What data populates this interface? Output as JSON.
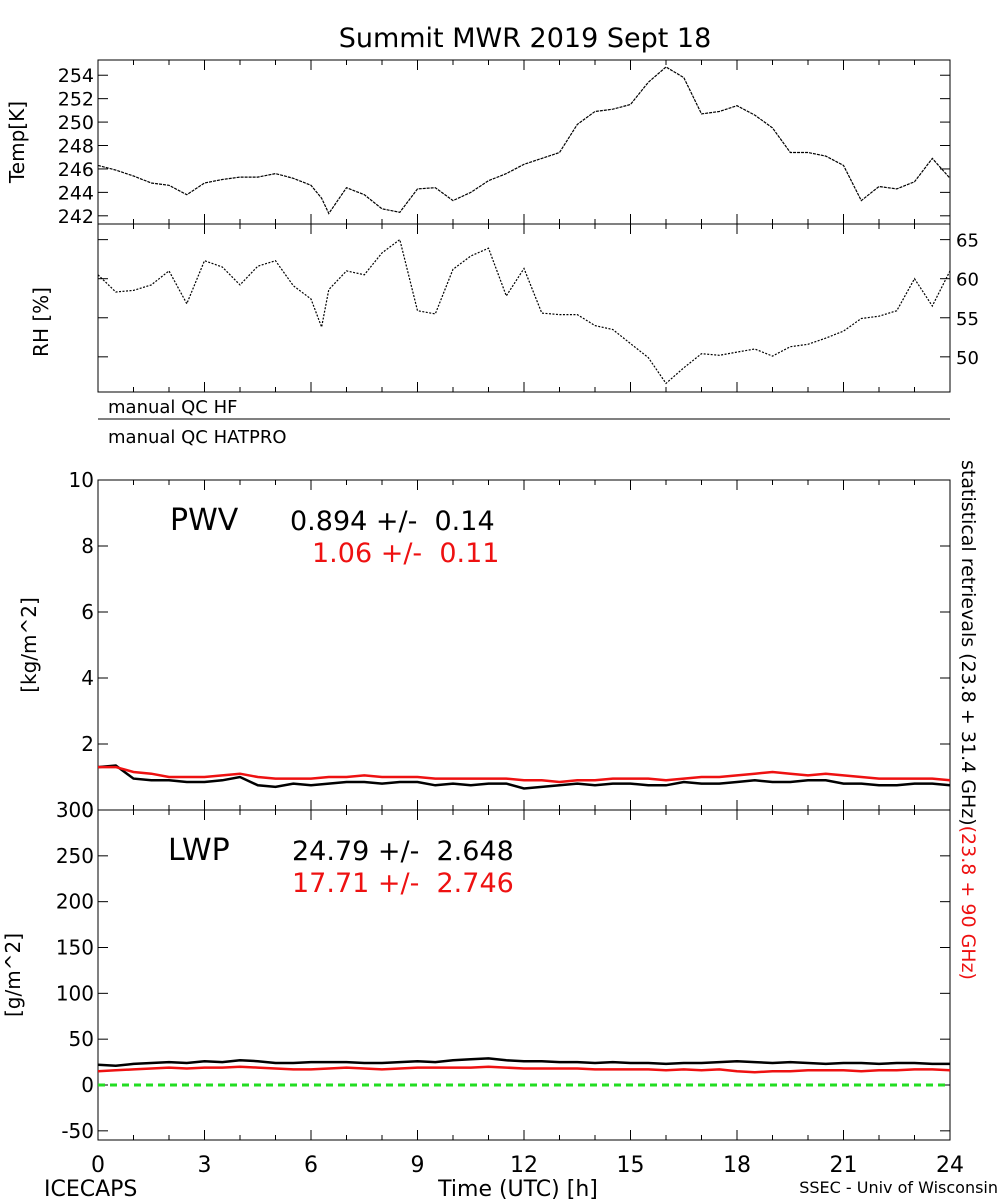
{
  "title": "Summit MWR 2019 Sept 18",
  "footer": {
    "left": "ICECAPS",
    "right": "SSEC - Univ of Wisconsin"
  },
  "xaxis": {
    "label": "Time (UTC) [h]",
    "range": [
      0,
      24
    ],
    "ticks": [
      "0",
      "3",
      "6",
      "9",
      "12",
      "15",
      "18",
      "21",
      "24"
    ]
  },
  "colors": {
    "black": "#000000",
    "red": "#ee1111",
    "green": "#22dd22"
  },
  "qc": {
    "hf_label": "manual QC HF",
    "hatpro_label": "manual QC HATPRO"
  },
  "right_label": {
    "black_part": "statistical retrievals (23.8 + 31.4 GHz)",
    "red_part": "(23.8 + 90 GHz)"
  },
  "pwv": {
    "name": "PWV",
    "black_stat": "0.894 +/-  0.14",
    "red_stat": "1.06 +/-  0.11",
    "ylabel": "[kg/m^2]",
    "ticks": [
      "0",
      "2",
      "4",
      "6",
      "8",
      "10"
    ]
  },
  "lwp": {
    "name": "LWP",
    "black_stat": "24.79 +/-  2.648",
    "red_stat": "17.71 +/-  2.746",
    "ylabel": "[g/m^2]",
    "ticks": [
      "-50",
      "0",
      "50",
      "100",
      "150",
      "200",
      "250",
      "300"
    ]
  },
  "temp": {
    "ylabel": "Temp[K]",
    "ticks": [
      "242",
      "244",
      "246",
      "248",
      "250",
      "252",
      "254"
    ]
  },
  "rh": {
    "ylabel": "RH [%]",
    "ticks": [
      "50",
      "55",
      "60",
      "65"
    ]
  },
  "chart_data": [
    {
      "type": "line",
      "ylabel": "Temp[K]",
      "ylim": [
        241.3,
        255.3
      ],
      "x": [
        0,
        0.5,
        1,
        1.5,
        2,
        2.5,
        3,
        3.5,
        4,
        4.5,
        5,
        5.5,
        6,
        6.3,
        6.5,
        7,
        7.5,
        8,
        8.5,
        9,
        9.5,
        10,
        10.5,
        11,
        11.5,
        12,
        12.5,
        13,
        13.5,
        14,
        14.5,
        15,
        15.5,
        16,
        16.5,
        17,
        17.5,
        18,
        18.5,
        19,
        19.5,
        20,
        20.5,
        21,
        21.5,
        22,
        22.5,
        23,
        23.5,
        24
      ],
      "series": [
        {
          "values": [
            246.3,
            245.9,
            245.4,
            244.8,
            244.6,
            243.8,
            244.8,
            245.1,
            245.3,
            245.3,
            245.6,
            245.2,
            244.6,
            243.5,
            242.2,
            244.4,
            243.8,
            242.6,
            242.3,
            244.3,
            244.4,
            243.3,
            244.0,
            245.0,
            245.6,
            246.4,
            246.9,
            247.4,
            249.8,
            250.9,
            251.1,
            251.5,
            253.4,
            254.7,
            253.8,
            250.7,
            250.9,
            251.4,
            250.6,
            249.5,
            247.4,
            247.4,
            247.1,
            246.3,
            243.3,
            244.5,
            244.3,
            244.9,
            246.9,
            245.2
          ]
        }
      ]
    },
    {
      "type": "line",
      "ylabel": "RH [%]",
      "ylim": [
        45.5,
        67
      ],
      "x": [
        0,
        0.5,
        1,
        1.5,
        2,
        2.5,
        3,
        3.5,
        4,
        4.5,
        5,
        5.5,
        6,
        6.3,
        6.5,
        7,
        7.5,
        8,
        8.5,
        9,
        9.5,
        10,
        10.5,
        11,
        11.5,
        12,
        12.5,
        13,
        13.5,
        14,
        14.5,
        15,
        15.5,
        16,
        16.5,
        17,
        17.5,
        18,
        18.5,
        19,
        19.5,
        20,
        20.5,
        21,
        21.5,
        22,
        22.5,
        23,
        23.5,
        24
      ],
      "series": [
        {
          "values": [
            60.5,
            58.3,
            58.5,
            59.2,
            61.0,
            56.8,
            62.3,
            61.5,
            59.2,
            61.6,
            62.3,
            59.1,
            57.4,
            53.8,
            58.6,
            61.0,
            60.5,
            63.3,
            65.0,
            55.9,
            55.5,
            61.2,
            62.9,
            63.9,
            57.8,
            61.3,
            55.6,
            55.4,
            55.4,
            54.0,
            53.5,
            51.7,
            49.9,
            46.6,
            48.6,
            50.4,
            50.2,
            50.6,
            51.0,
            50.1,
            51.3,
            51.6,
            52.4,
            53.3,
            54.9,
            55.2,
            55.9,
            60.0,
            56.5,
            61.0
          ]
        }
      ]
    },
    {
      "type": "line",
      "ylabel": "[kg/m^2]",
      "ylim": [
        0,
        10
      ],
      "x": [
        0,
        0.5,
        1,
        1.5,
        2,
        2.5,
        3,
        3.5,
        4,
        4.5,
        5,
        5.5,
        6,
        6.5,
        7,
        7.5,
        8,
        8.5,
        9,
        9.5,
        10,
        10.5,
        11,
        11.5,
        12,
        12.5,
        13,
        13.5,
        14,
        14.5,
        15,
        15.5,
        16,
        16.5,
        17,
        17.5,
        18,
        18.5,
        19,
        19.5,
        20,
        20.5,
        21,
        21.5,
        22,
        22.5,
        23,
        23.5,
        24
      ],
      "series": [
        {
          "name": "0.894 +/-  0.14",
          "values": [
            1.3,
            1.35,
            0.95,
            0.9,
            0.9,
            0.85,
            0.85,
            0.9,
            1.0,
            0.75,
            0.7,
            0.8,
            0.75,
            0.8,
            0.85,
            0.85,
            0.8,
            0.85,
            0.85,
            0.75,
            0.8,
            0.75,
            0.8,
            0.8,
            0.65,
            0.7,
            0.75,
            0.8,
            0.75,
            0.8,
            0.8,
            0.75,
            0.75,
            0.85,
            0.8,
            0.8,
            0.85,
            0.9,
            0.85,
            0.85,
            0.9,
            0.9,
            0.8,
            0.8,
            0.75,
            0.75,
            0.8,
            0.8,
            0.75
          ]
        },
        {
          "name": "1.06 +/-  0.11",
          "values": [
            1.3,
            1.3,
            1.15,
            1.1,
            1.0,
            1.0,
            1.0,
            1.05,
            1.1,
            1.0,
            0.95,
            0.95,
            0.95,
            1.0,
            1.0,
            1.05,
            1.0,
            1.0,
            1.0,
            0.95,
            0.95,
            0.95,
            0.95,
            0.95,
            0.9,
            0.9,
            0.85,
            0.9,
            0.9,
            0.95,
            0.95,
            0.95,
            0.9,
            0.95,
            1.0,
            1.0,
            1.05,
            1.1,
            1.15,
            1.1,
            1.05,
            1.1,
            1.05,
            1.0,
            0.95,
            0.95,
            0.95,
            0.95,
            0.9
          ]
        }
      ]
    },
    {
      "type": "line",
      "ylabel": "[g/m^2]",
      "ylim": [
        -60,
        300
      ],
      "x": [
        0,
        0.5,
        1,
        1.5,
        2,
        2.5,
        3,
        3.5,
        4,
        4.5,
        5,
        5.5,
        6,
        6.5,
        7,
        7.5,
        8,
        8.5,
        9,
        9.5,
        10,
        10.5,
        11,
        11.5,
        12,
        12.5,
        13,
        13.5,
        14,
        14.5,
        15,
        15.5,
        16,
        16.5,
        17,
        17.5,
        18,
        18.5,
        19,
        19.5,
        20,
        20.5,
        21,
        21.5,
        22,
        22.5,
        23,
        23.5,
        24
      ],
      "series": [
        {
          "name": "24.79 +/-  2.648",
          "values": [
            22,
            21,
            23,
            24,
            25,
            24,
            26,
            25,
            27,
            26,
            24,
            24,
            25,
            25,
            25,
            24,
            24,
            25,
            26,
            25,
            27,
            28,
            29,
            27,
            26,
            26,
            25,
            25,
            24,
            25,
            24,
            24,
            23,
            24,
            24,
            25,
            26,
            25,
            24,
            25,
            24,
            23,
            24,
            24,
            23,
            24,
            24,
            23,
            23
          ]
        },
        {
          "name": "17.71 +/-  2.746",
          "values": [
            15,
            16,
            17,
            18,
            19,
            18,
            19,
            19,
            20,
            19,
            18,
            17,
            17,
            18,
            19,
            18,
            17,
            18,
            19,
            19,
            19,
            19,
            20,
            19,
            18,
            18,
            18,
            18,
            17,
            17,
            17,
            17,
            16,
            17,
            16,
            17,
            15,
            14,
            15,
            15,
            16,
            16,
            16,
            15,
            16,
            16,
            17,
            17,
            16
          ]
        },
        {
          "values": [
            0,
            0
          ],
          "x": [
            0,
            24
          ]
        }
      ]
    }
  ]
}
